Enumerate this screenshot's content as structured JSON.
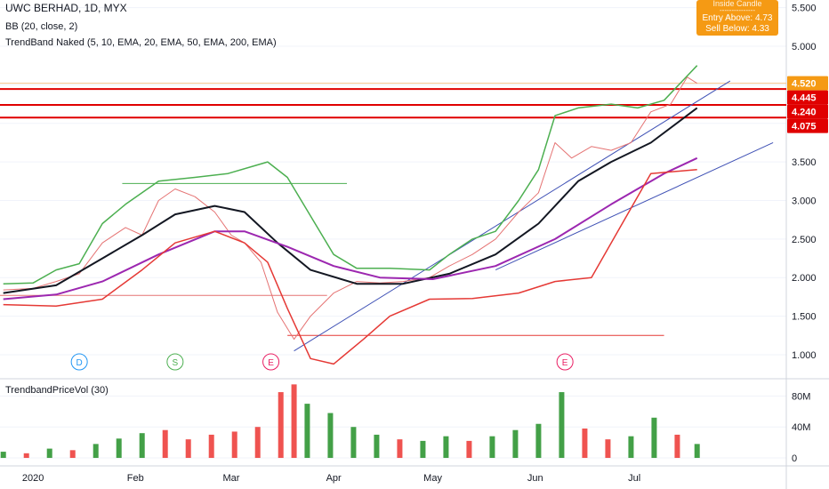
{
  "legend": {
    "title": "UWC BERHAD, 1D, MYX",
    "bb": "BB (20, close, 2)",
    "trendband": "TrendBand Naked (5, 10, EMA, 20, EMA, 50, EMA, 200, EMA)",
    "volume": "TrendbandPriceVol (30)"
  },
  "tooltip": {
    "header": "Inside Candle",
    "dashes": "---------------",
    "entry": "Entry Above: 4.73",
    "sell": "Sell Below: 4.33"
  },
  "colors": {
    "up": "#43a047",
    "down": "#ef5350",
    "bb": "#4caf50",
    "ema_black": "#131722",
    "ema_purple": "#9c27b0",
    "ema_red": "#e53935",
    "trend_line": "#3f51b5",
    "level_line": "#e00000",
    "price_tag": "#e00000",
    "last_tag": "#f59a14",
    "vol_avg": "#2196f3"
  },
  "chart_data": {
    "type": "line",
    "price_axis": {
      "range": [
        0.7,
        5.6
      ],
      "ticks": [
        1.0,
        1.5,
        2.0,
        2.5,
        3.0,
        3.5,
        4.0,
        4.5,
        5.0,
        5.5
      ],
      "tick_labels": [
        "1.000",
        "1.500",
        "2.000",
        "2.500",
        "3.000",
        "3.500",
        "4.000",
        "4.500",
        "5.000",
        "5.500"
      ]
    },
    "volume_axis": {
      "range": [
        -8,
        100
      ],
      "ticks": [
        0,
        40,
        80
      ],
      "tick_labels": [
        "0",
        "40M",
        "80M"
      ]
    },
    "time_axis": {
      "labels": [
        "2020",
        "Feb",
        "Mar",
        "Apr",
        "May",
        "Jun",
        "Jul"
      ]
    },
    "price_tags": [
      {
        "value": 4.52,
        "label": "4.520",
        "kind": "last"
      },
      {
        "value": 4.445,
        "label": "4.445",
        "kind": "level"
      },
      {
        "value": 4.24,
        "label": "4.240",
        "kind": "level"
      },
      {
        "value": 4.075,
        "label": "4.075",
        "kind": "level"
      }
    ],
    "event_markers": [
      {
        "letter": "D",
        "color": "#2196f3",
        "date": "2020-01-15"
      },
      {
        "letter": "S",
        "color": "#4caf50",
        "date": "2020-02-13"
      },
      {
        "letter": "E",
        "color": "#e91e63",
        "date": "2020-03-13"
      },
      {
        "letter": "E",
        "color": "#e91e63",
        "date": "2020-06-10"
      }
    ],
    "series": [
      {
        "name": "Close",
        "points": [
          [
            "2019-12-23",
            1.84
          ],
          [
            "2020-01-01",
            1.86
          ],
          [
            "2020-01-08",
            1.95
          ],
          [
            "2020-01-15",
            2.05
          ],
          [
            "2020-01-22",
            2.45
          ],
          [
            "2020-01-29",
            2.65
          ],
          [
            "2020-02-03",
            2.55
          ],
          [
            "2020-02-08",
            3.0
          ],
          [
            "2020-02-13",
            3.15
          ],
          [
            "2020-02-19",
            3.05
          ],
          [
            "2020-02-25",
            2.85
          ],
          [
            "2020-03-01",
            2.55
          ],
          [
            "2020-03-05",
            2.45
          ],
          [
            "2020-03-10",
            2.2
          ],
          [
            "2020-03-15",
            1.55
          ],
          [
            "2020-03-20",
            1.2
          ],
          [
            "2020-03-25",
            1.5
          ],
          [
            "2020-04-01",
            1.8
          ],
          [
            "2020-04-08",
            1.95
          ],
          [
            "2020-04-15",
            1.93
          ],
          [
            "2020-04-22",
            1.95
          ],
          [
            "2020-04-30",
            2.0
          ],
          [
            "2020-05-06",
            2.15
          ],
          [
            "2020-05-13",
            2.3
          ],
          [
            "2020-05-20",
            2.5
          ],
          [
            "2020-05-27",
            2.85
          ],
          [
            "2020-06-02",
            3.1
          ],
          [
            "2020-06-07",
            3.75
          ],
          [
            "2020-06-12",
            3.55
          ],
          [
            "2020-06-18",
            3.7
          ],
          [
            "2020-06-24",
            3.65
          ],
          [
            "2020-06-30",
            3.75
          ],
          [
            "2020-07-06",
            4.15
          ],
          [
            "2020-07-12",
            4.25
          ],
          [
            "2020-07-17",
            4.6
          ],
          [
            "2020-07-20",
            4.52
          ]
        ]
      },
      {
        "name": "BB",
        "points": [
          [
            "2019-12-23",
            1.92
          ],
          [
            "2020-01-01",
            1.93
          ],
          [
            "2020-01-08",
            2.1
          ],
          [
            "2020-01-15",
            2.18
          ],
          [
            "2020-01-22",
            2.7
          ],
          [
            "2020-01-29",
            2.95
          ],
          [
            "2020-02-08",
            3.25
          ],
          [
            "2020-02-19",
            3.3
          ],
          [
            "2020-02-29",
            3.35
          ],
          [
            "2020-03-08",
            3.45
          ],
          [
            "2020-03-12",
            3.5
          ],
          [
            "2020-03-18",
            3.3
          ],
          [
            "2020-03-25",
            2.8
          ],
          [
            "2020-04-01",
            2.3
          ],
          [
            "2020-04-08",
            2.12
          ],
          [
            "2020-04-18",
            2.12
          ],
          [
            "2020-04-30",
            2.1
          ],
          [
            "2020-05-06",
            2.3
          ],
          [
            "2020-05-13",
            2.5
          ],
          [
            "2020-05-20",
            2.6
          ],
          [
            "2020-05-27",
            3.0
          ],
          [
            "2020-06-02",
            3.4
          ],
          [
            "2020-06-07",
            4.1
          ],
          [
            "2020-06-14",
            4.2
          ],
          [
            "2020-06-24",
            4.25
          ],
          [
            "2020-07-02",
            4.2
          ],
          [
            "2020-07-10",
            4.3
          ],
          [
            "2020-07-20",
            4.75
          ]
        ]
      },
      {
        "name": "EMA 20",
        "points": [
          [
            "2019-12-23",
            1.8
          ],
          [
            "2020-01-08",
            1.9
          ],
          [
            "2020-01-22",
            2.25
          ],
          [
            "2020-02-03",
            2.55
          ],
          [
            "2020-02-13",
            2.82
          ],
          [
            "2020-02-25",
            2.93
          ],
          [
            "2020-03-05",
            2.85
          ],
          [
            "2020-03-15",
            2.45
          ],
          [
            "2020-03-25",
            2.1
          ],
          [
            "2020-04-08",
            1.92
          ],
          [
            "2020-04-22",
            1.92
          ],
          [
            "2020-05-06",
            2.05
          ],
          [
            "2020-05-20",
            2.3
          ],
          [
            "2020-06-02",
            2.7
          ],
          [
            "2020-06-14",
            3.25
          ],
          [
            "2020-06-24",
            3.5
          ],
          [
            "2020-07-06",
            3.75
          ],
          [
            "2020-07-20",
            4.2
          ]
        ]
      },
      {
        "name": "EMA 50",
        "points": [
          [
            "2019-12-23",
            1.72
          ],
          [
            "2020-01-08",
            1.78
          ],
          [
            "2020-01-22",
            1.95
          ],
          [
            "2020-02-08",
            2.3
          ],
          [
            "2020-02-25",
            2.6
          ],
          [
            "2020-03-05",
            2.6
          ],
          [
            "2020-03-18",
            2.4
          ],
          [
            "2020-04-01",
            2.15
          ],
          [
            "2020-04-15",
            2.0
          ],
          [
            "2020-05-01",
            1.98
          ],
          [
            "2020-05-20",
            2.15
          ],
          [
            "2020-06-07",
            2.5
          ],
          [
            "2020-06-24",
            2.95
          ],
          [
            "2020-07-10",
            3.35
          ],
          [
            "2020-07-20",
            3.55
          ]
        ]
      },
      {
        "name": "EMA 200",
        "points": [
          [
            "2019-12-23",
            1.65
          ],
          [
            "2020-01-08",
            1.63
          ],
          [
            "2020-01-22",
            1.72
          ],
          [
            "2020-02-03",
            2.1
          ],
          [
            "2020-02-13",
            2.45
          ],
          [
            "2020-02-25",
            2.6
          ],
          [
            "2020-03-05",
            2.45
          ],
          [
            "2020-03-12",
            2.2
          ],
          [
            "2020-03-18",
            1.6
          ],
          [
            "2020-03-25",
            0.95
          ],
          [
            "2020-04-01",
            0.88
          ],
          [
            "2020-04-10",
            1.2
          ],
          [
            "2020-04-18",
            1.5
          ],
          [
            "2020-04-30",
            1.72
          ],
          [
            "2020-05-13",
            1.73
          ],
          [
            "2020-05-27",
            1.8
          ],
          [
            "2020-06-07",
            1.95
          ],
          [
            "2020-06-18",
            2.0
          ],
          [
            "2020-06-30",
            2.9
          ],
          [
            "2020-07-06",
            3.35
          ],
          [
            "2020-07-20",
            3.4
          ]
        ]
      }
    ],
    "volume": [
      {
        "date": "2019-12-23",
        "value": 8,
        "up": true
      },
      {
        "date": "2019-12-30",
        "value": 6,
        "up": false
      },
      {
        "date": "2020-01-06",
        "value": 12,
        "up": true
      },
      {
        "date": "2020-01-13",
        "value": 10,
        "up": false
      },
      {
        "date": "2020-01-20",
        "value": 18,
        "up": true
      },
      {
        "date": "2020-01-27",
        "value": 25,
        "up": true
      },
      {
        "date": "2020-02-03",
        "value": 32,
        "up": true
      },
      {
        "date": "2020-02-10",
        "value": 36,
        "up": false
      },
      {
        "date": "2020-02-17",
        "value": 24,
        "up": false
      },
      {
        "date": "2020-02-24",
        "value": 30,
        "up": false
      },
      {
        "date": "2020-03-02",
        "value": 34,
        "up": false
      },
      {
        "date": "2020-03-09",
        "value": 40,
        "up": false
      },
      {
        "date": "2020-03-16",
        "value": 85,
        "up": false
      },
      {
        "date": "2020-03-20",
        "value": 95,
        "up": false
      },
      {
        "date": "2020-03-24",
        "value": 70,
        "up": true
      },
      {
        "date": "2020-03-31",
        "value": 58,
        "up": true
      },
      {
        "date": "2020-04-07",
        "value": 40,
        "up": true
      },
      {
        "date": "2020-04-14",
        "value": 30,
        "up": true
      },
      {
        "date": "2020-04-21",
        "value": 24,
        "up": false
      },
      {
        "date": "2020-04-28",
        "value": 22,
        "up": true
      },
      {
        "date": "2020-05-05",
        "value": 28,
        "up": true
      },
      {
        "date": "2020-05-12",
        "value": 22,
        "up": false
      },
      {
        "date": "2020-05-19",
        "value": 28,
        "up": true
      },
      {
        "date": "2020-05-26",
        "value": 36,
        "up": true
      },
      {
        "date": "2020-06-02",
        "value": 44,
        "up": true
      },
      {
        "date": "2020-06-09",
        "value": 85,
        "up": true
      },
      {
        "date": "2020-06-16",
        "value": 38,
        "up": false
      },
      {
        "date": "2020-06-23",
        "value": 24,
        "up": false
      },
      {
        "date": "2020-06-30",
        "value": 28,
        "up": true
      },
      {
        "date": "2020-07-07",
        "value": 52,
        "up": true
      },
      {
        "date": "2020-07-14",
        "value": 30,
        "up": false
      },
      {
        "date": "2020-07-20",
        "value": 18,
        "up": true
      }
    ]
  }
}
